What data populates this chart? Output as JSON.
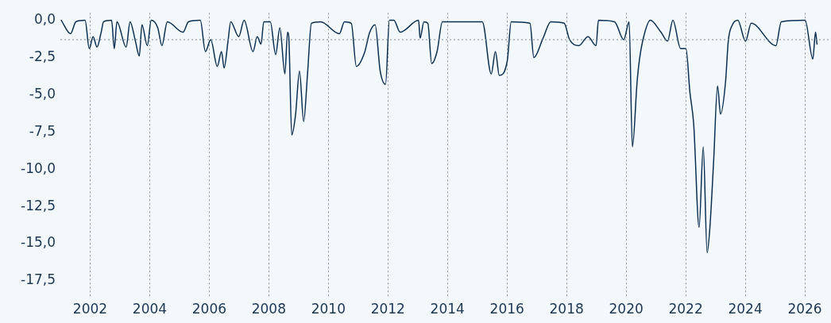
{
  "chart_data": {
    "type": "line",
    "x": [
      2001.03,
      2001.34,
      2001.52,
      2001.83,
      2001.97,
      2002.1,
      2002.23,
      2002.37,
      2002.45,
      2002.72,
      2002.81,
      2002.9,
      2003.21,
      2003.34,
      2003.52,
      2003.65,
      2003.74,
      2003.92,
      2004.05,
      2004.27,
      2004.41,
      2004.59,
      2005.12,
      2005.3,
      2005.7,
      2005.87,
      2006.05,
      2006.27,
      2006.41,
      2006.5,
      2006.63,
      2006.72,
      2006.99,
      2007.17,
      2007.47,
      2007.61,
      2007.74,
      2007.83,
      2008.05,
      2008.23,
      2008.37,
      2008.54,
      2008.63,
      2008.67,
      2008.77,
      2008.9,
      2009.03,
      2009.17,
      2009.3,
      2009.43,
      2009.74,
      2010.37,
      2010.54,
      2010.77,
      2010.94,
      2011.21,
      2011.39,
      2011.57,
      2011.74,
      2011.92,
      2012.05,
      2012.2,
      2012.41,
      2013.03,
      2013.08,
      2013.21,
      2013.34,
      2013.47,
      2013.65,
      2013.83,
      2015.17,
      2015.47,
      2015.61,
      2015.74,
      2016.01,
      2016.14,
      2016.77,
      2016.9,
      2017.21,
      2017.47,
      2017.92,
      2018.1,
      2018.41,
      2018.72,
      2018.99,
      2019.07,
      2019.61,
      2019.92,
      2020.1,
      2020.21,
      2020.37,
      2020.45,
      2020.59,
      2020.81,
      2021.17,
      2021.39,
      2021.57,
      2021.83,
      2022.01,
      2022.14,
      2022.27,
      2022.45,
      2022.59,
      2022.72,
      2022.81,
      2022.94,
      2023.07,
      2023.17,
      2023.34,
      2023.43,
      2023.57,
      2023.75,
      2024.01,
      2024.2,
      2025.03,
      2025.21,
      2026.01,
      2026.27,
      2026.36,
      2026.41
    ],
    "series": [
      {
        "color": "#0c2f50",
        "values": [
          0,
          -0.9,
          -0.1,
          0,
          -1.9,
          -1.1,
          -1.8,
          -0.8,
          -0.1,
          0,
          -1.9,
          -0.1,
          -1.8,
          -0.1,
          -1.4,
          -2.4,
          -0.3,
          -1.7,
          0,
          -0.5,
          -1.7,
          -0.1,
          -0.8,
          -0.1,
          0,
          -2.1,
          -1.3,
          -3.1,
          -2.1,
          -3.2,
          -1.4,
          -0.1,
          -1.1,
          0,
          -2.1,
          -1.1,
          -1.6,
          -0.1,
          -0.1,
          -2.3,
          -0.5,
          -3.6,
          -0.8,
          -1.1,
          -7.7,
          -6.3,
          -3.4,
          -6.8,
          -3.6,
          -0.2,
          -0.1,
          -0.9,
          -0.1,
          -0.2,
          -3.1,
          -2.2,
          -0.8,
          -0.3,
          -3.4,
          -4.3,
          0,
          0,
          -0.8,
          0,
          -1.2,
          -0.1,
          -0.2,
          -2.9,
          -2.1,
          -0.1,
          -0.1,
          -3.6,
          -2.1,
          -3.7,
          -2.7,
          -0.1,
          -0.2,
          -2.5,
          -1.2,
          -0.1,
          -0.2,
          -1.3,
          -1.7,
          -1.1,
          -1.7,
          0,
          -0.1,
          -1.3,
          -0.1,
          -8.5,
          -4.1,
          -2.6,
          -1.1,
          0,
          -0.8,
          -1.4,
          0,
          -1.9,
          -1.9,
          -4.8,
          -7.0,
          -13.9,
          -8.5,
          -15.6,
          -14.0,
          -9.4,
          -4.4,
          -6.3,
          -4.1,
          -1.4,
          -0.3,
          0,
          -1.4,
          -0.2,
          -1.7,
          -0.1,
          0,
          -2.6,
          -0.8,
          -1.6
        ]
      }
    ],
    "xlim": [
      2001.0,
      2026.88
    ],
    "xticks": [
      2002,
      2004,
      2006,
      2008,
      2010,
      2012,
      2014,
      2016,
      2018,
      2020,
      2022,
      2024,
      2026
    ],
    "ylim": [
      -18.6,
      0.5
    ],
    "yticks": [
      {
        "value": 0,
        "label": "0,0"
      },
      {
        "value": -2.5,
        "label": "-2,5"
      },
      {
        "value": -5,
        "label": "-5,0"
      },
      {
        "value": -7.5,
        "label": "-7,5"
      },
      {
        "value": -10,
        "label": "-10,0"
      },
      {
        "value": -12.5,
        "label": "-12,5"
      },
      {
        "value": -15,
        "label": "-15,0"
      },
      {
        "value": -17.5,
        "label": "-17,5"
      }
    ],
    "ref_lines": [
      {
        "axis": "y",
        "value": -1.3,
        "color": "#7f8a96",
        "line_style": "dotted"
      }
    ],
    "grid": "x",
    "marker": "none",
    "line_style": "solid",
    "legend": false
  }
}
